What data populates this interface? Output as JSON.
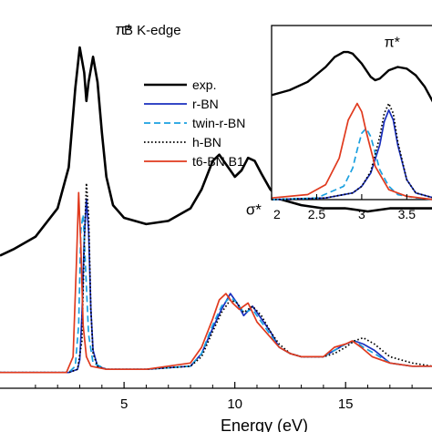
{
  "chart_data": [
    {
      "type": "line",
      "title": "B K-edge",
      "xlabel": "Energy (eV)",
      "ylabel": "",
      "xlim": [
        -0.6,
        18.9
      ],
      "ylim": [
        -0.05,
        1.18
      ],
      "x_ticks": [
        5,
        10,
        15
      ],
      "x_tick_labels": [
        "5",
        "10",
        "15"
      ],
      "grid": false,
      "legend_position": "center",
      "annotations": [
        {
          "text": "π*",
          "x": 4.6,
          "y": 1.07
        },
        {
          "text": "σ*",
          "x": 10.5,
          "y": 0.5
        }
      ],
      "series": [
        {
          "name": "exp.",
          "color": "#000000",
          "style": "solid",
          "x": [
            -0.6,
            0.0,
            1.0,
            2.0,
            2.5,
            2.8,
            3.0,
            3.2,
            3.3,
            3.4,
            3.6,
            3.8,
            4.0,
            4.2,
            4.5,
            5.0,
            6.0,
            7.0,
            8.0,
            8.5,
            9.0,
            9.3,
            9.6,
            10.0,
            10.3,
            10.6,
            10.9,
            11.2,
            11.6,
            12.0,
            13.0,
            14.0,
            15.0,
            16.0,
            17.0,
            18.0,
            18.9
          ],
          "y": [
            0.37,
            0.39,
            0.43,
            0.52,
            0.65,
            0.9,
            1.03,
            0.95,
            0.86,
            0.92,
            1.0,
            0.92,
            0.76,
            0.62,
            0.53,
            0.49,
            0.47,
            0.48,
            0.52,
            0.58,
            0.67,
            0.69,
            0.66,
            0.62,
            0.64,
            0.68,
            0.67,
            0.63,
            0.58,
            0.55,
            0.53,
            0.52,
            0.52,
            0.51,
            0.52,
            0.52,
            0.52
          ]
        },
        {
          "name": "r-BN",
          "color": "#1a2fbe",
          "style": "solid",
          "x": [
            -0.6,
            2.5,
            2.9,
            3.0,
            3.1,
            3.2,
            3.3,
            3.4,
            3.5,
            3.6,
            3.8,
            4.2,
            6.0,
            8.0,
            8.5,
            9.0,
            9.4,
            9.8,
            10.1,
            10.4,
            10.8,
            11.2,
            11.6,
            12.0,
            12.5,
            13.0,
            14.0,
            14.5,
            15.0,
            15.4,
            15.8,
            16.3,
            17.0,
            18.0,
            18.9
          ],
          "y": [
            0.0,
            0.0,
            0.01,
            0.04,
            0.18,
            0.42,
            0.55,
            0.45,
            0.2,
            0.07,
            0.02,
            0.01,
            0.01,
            0.02,
            0.06,
            0.14,
            0.2,
            0.25,
            0.22,
            0.18,
            0.21,
            0.17,
            0.13,
            0.08,
            0.06,
            0.05,
            0.05,
            0.07,
            0.09,
            0.1,
            0.09,
            0.07,
            0.03,
            0.02,
            0.02
          ]
        },
        {
          "name": "twin-r-BN",
          "color": "#1aa0e0",
          "style": "dashed",
          "x": [
            -0.6,
            2.5,
            2.8,
            2.95,
            3.05,
            3.15,
            3.25,
            3.4,
            3.6,
            4.2,
            6.0,
            8.0,
            8.5,
            9.0,
            9.4,
            9.8,
            10.1,
            10.4,
            10.8,
            11.2,
            11.6,
            12.0,
            12.5,
            13.0,
            14.0,
            14.5,
            15.0,
            15.4,
            15.8,
            16.3,
            17.0,
            18.0,
            18.9
          ],
          "y": [
            0.0,
            0.0,
            0.02,
            0.15,
            0.45,
            0.5,
            0.35,
            0.12,
            0.03,
            0.01,
            0.01,
            0.02,
            0.06,
            0.15,
            0.21,
            0.24,
            0.22,
            0.19,
            0.2,
            0.16,
            0.12,
            0.08,
            0.06,
            0.05,
            0.05,
            0.07,
            0.09,
            0.1,
            0.08,
            0.06,
            0.03,
            0.02,
            0.02
          ]
        },
        {
          "name": "h-BN",
          "color": "#000000",
          "style": "dotted",
          "x": [
            -0.6,
            2.5,
            2.9,
            3.1,
            3.2,
            3.3,
            3.4,
            3.5,
            3.6,
            3.8,
            4.2,
            6.0,
            8.0,
            8.5,
            9.0,
            9.4,
            9.8,
            10.1,
            10.4,
            10.8,
            11.2,
            11.6,
            12.0,
            12.5,
            13.0,
            14.0,
            14.5,
            15.0,
            15.4,
            15.8,
            16.3,
            17.0,
            18.0,
            18.9
          ],
          "y": [
            0.0,
            0.0,
            0.01,
            0.1,
            0.4,
            0.6,
            0.5,
            0.2,
            0.06,
            0.02,
            0.01,
            0.01,
            0.02,
            0.05,
            0.13,
            0.19,
            0.23,
            0.22,
            0.19,
            0.21,
            0.18,
            0.13,
            0.09,
            0.06,
            0.05,
            0.05,
            0.06,
            0.08,
            0.1,
            0.11,
            0.09,
            0.05,
            0.03,
            0.02
          ]
        },
        {
          "name": "t6-BN B1",
          "color": "#e03a1e",
          "style": "solid",
          "x": [
            -0.6,
            2.4,
            2.7,
            2.85,
            2.95,
            3.05,
            3.15,
            3.3,
            3.5,
            4.2,
            6.0,
            8.0,
            8.5,
            9.0,
            9.3,
            9.6,
            9.9,
            10.2,
            10.6,
            11.0,
            11.5,
            12.0,
            12.5,
            13.0,
            14.0,
            14.5,
            15.0,
            15.3,
            15.7,
            16.2,
            17.0,
            18.0,
            18.9
          ],
          "y": [
            0.0,
            0.0,
            0.05,
            0.35,
            0.57,
            0.4,
            0.15,
            0.05,
            0.02,
            0.01,
            0.01,
            0.03,
            0.08,
            0.17,
            0.23,
            0.25,
            0.22,
            0.2,
            0.22,
            0.16,
            0.12,
            0.08,
            0.06,
            0.05,
            0.05,
            0.08,
            0.09,
            0.1,
            0.08,
            0.05,
            0.03,
            0.02,
            0.02
          ]
        }
      ]
    },
    {
      "type": "line",
      "title": "",
      "xlabel": "",
      "ylabel": "",
      "xlim": [
        2.0,
        3.8
      ],
      "ylim": [
        0.0,
        1.05
      ],
      "x_ticks": [
        2.0,
        2.5,
        3.0,
        3.5
      ],
      "x_tick_labels": [
        "2",
        "2.5",
        "3",
        "3.5"
      ],
      "grid": false,
      "annotations": [
        {
          "text": "π*",
          "x": 3.25,
          "y": 0.92
        }
      ],
      "series": [
        {
          "name": "exp.",
          "color": "#000000",
          "style": "solid",
          "x": [
            2.0,
            2.2,
            2.4,
            2.6,
            2.7,
            2.8,
            2.85,
            2.9,
            3.0,
            3.1,
            3.15,
            3.2,
            3.3,
            3.4,
            3.5,
            3.6,
            3.7,
            3.8
          ],
          "y": [
            0.63,
            0.66,
            0.71,
            0.8,
            0.86,
            0.89,
            0.89,
            0.88,
            0.82,
            0.74,
            0.72,
            0.73,
            0.78,
            0.8,
            0.79,
            0.75,
            0.68,
            0.58
          ]
        },
        {
          "name": "r-BN",
          "color": "#1a2fbe",
          "style": "solid",
          "x": [
            2.0,
            2.6,
            2.9,
            3.0,
            3.1,
            3.2,
            3.25,
            3.3,
            3.35,
            3.4,
            3.5,
            3.6,
            3.8
          ],
          "y": [
            0.0,
            0.01,
            0.04,
            0.08,
            0.16,
            0.33,
            0.47,
            0.54,
            0.48,
            0.33,
            0.12,
            0.04,
            0.01
          ]
        },
        {
          "name": "twin-r-BN",
          "color": "#1aa0e0",
          "style": "dashed",
          "x": [
            2.0,
            2.5,
            2.8,
            2.9,
            2.95,
            3.0,
            3.05,
            3.1,
            3.2,
            3.3,
            3.4,
            3.6,
            3.8
          ],
          "y": [
            0.0,
            0.01,
            0.08,
            0.19,
            0.3,
            0.4,
            0.43,
            0.38,
            0.18,
            0.08,
            0.03,
            0.01,
            0.0
          ]
        },
        {
          "name": "h-BN",
          "color": "#000000",
          "style": "dotted",
          "x": [
            2.0,
            2.6,
            2.9,
            3.0,
            3.1,
            3.2,
            3.25,
            3.3,
            3.35,
            3.4,
            3.5,
            3.6,
            3.8
          ],
          "y": [
            0.0,
            0.01,
            0.04,
            0.08,
            0.17,
            0.38,
            0.52,
            0.58,
            0.52,
            0.35,
            0.12,
            0.04,
            0.01
          ]
        },
        {
          "name": "t6-BN B1",
          "color": "#e03a1e",
          "style": "solid",
          "x": [
            2.0,
            2.4,
            2.6,
            2.75,
            2.85,
            2.95,
            3.0,
            3.05,
            3.15,
            3.3,
            3.5,
            3.8
          ],
          "y": [
            0.01,
            0.03,
            0.09,
            0.25,
            0.48,
            0.58,
            0.53,
            0.41,
            0.2,
            0.06,
            0.02,
            0.0
          ]
        }
      ]
    }
  ]
}
